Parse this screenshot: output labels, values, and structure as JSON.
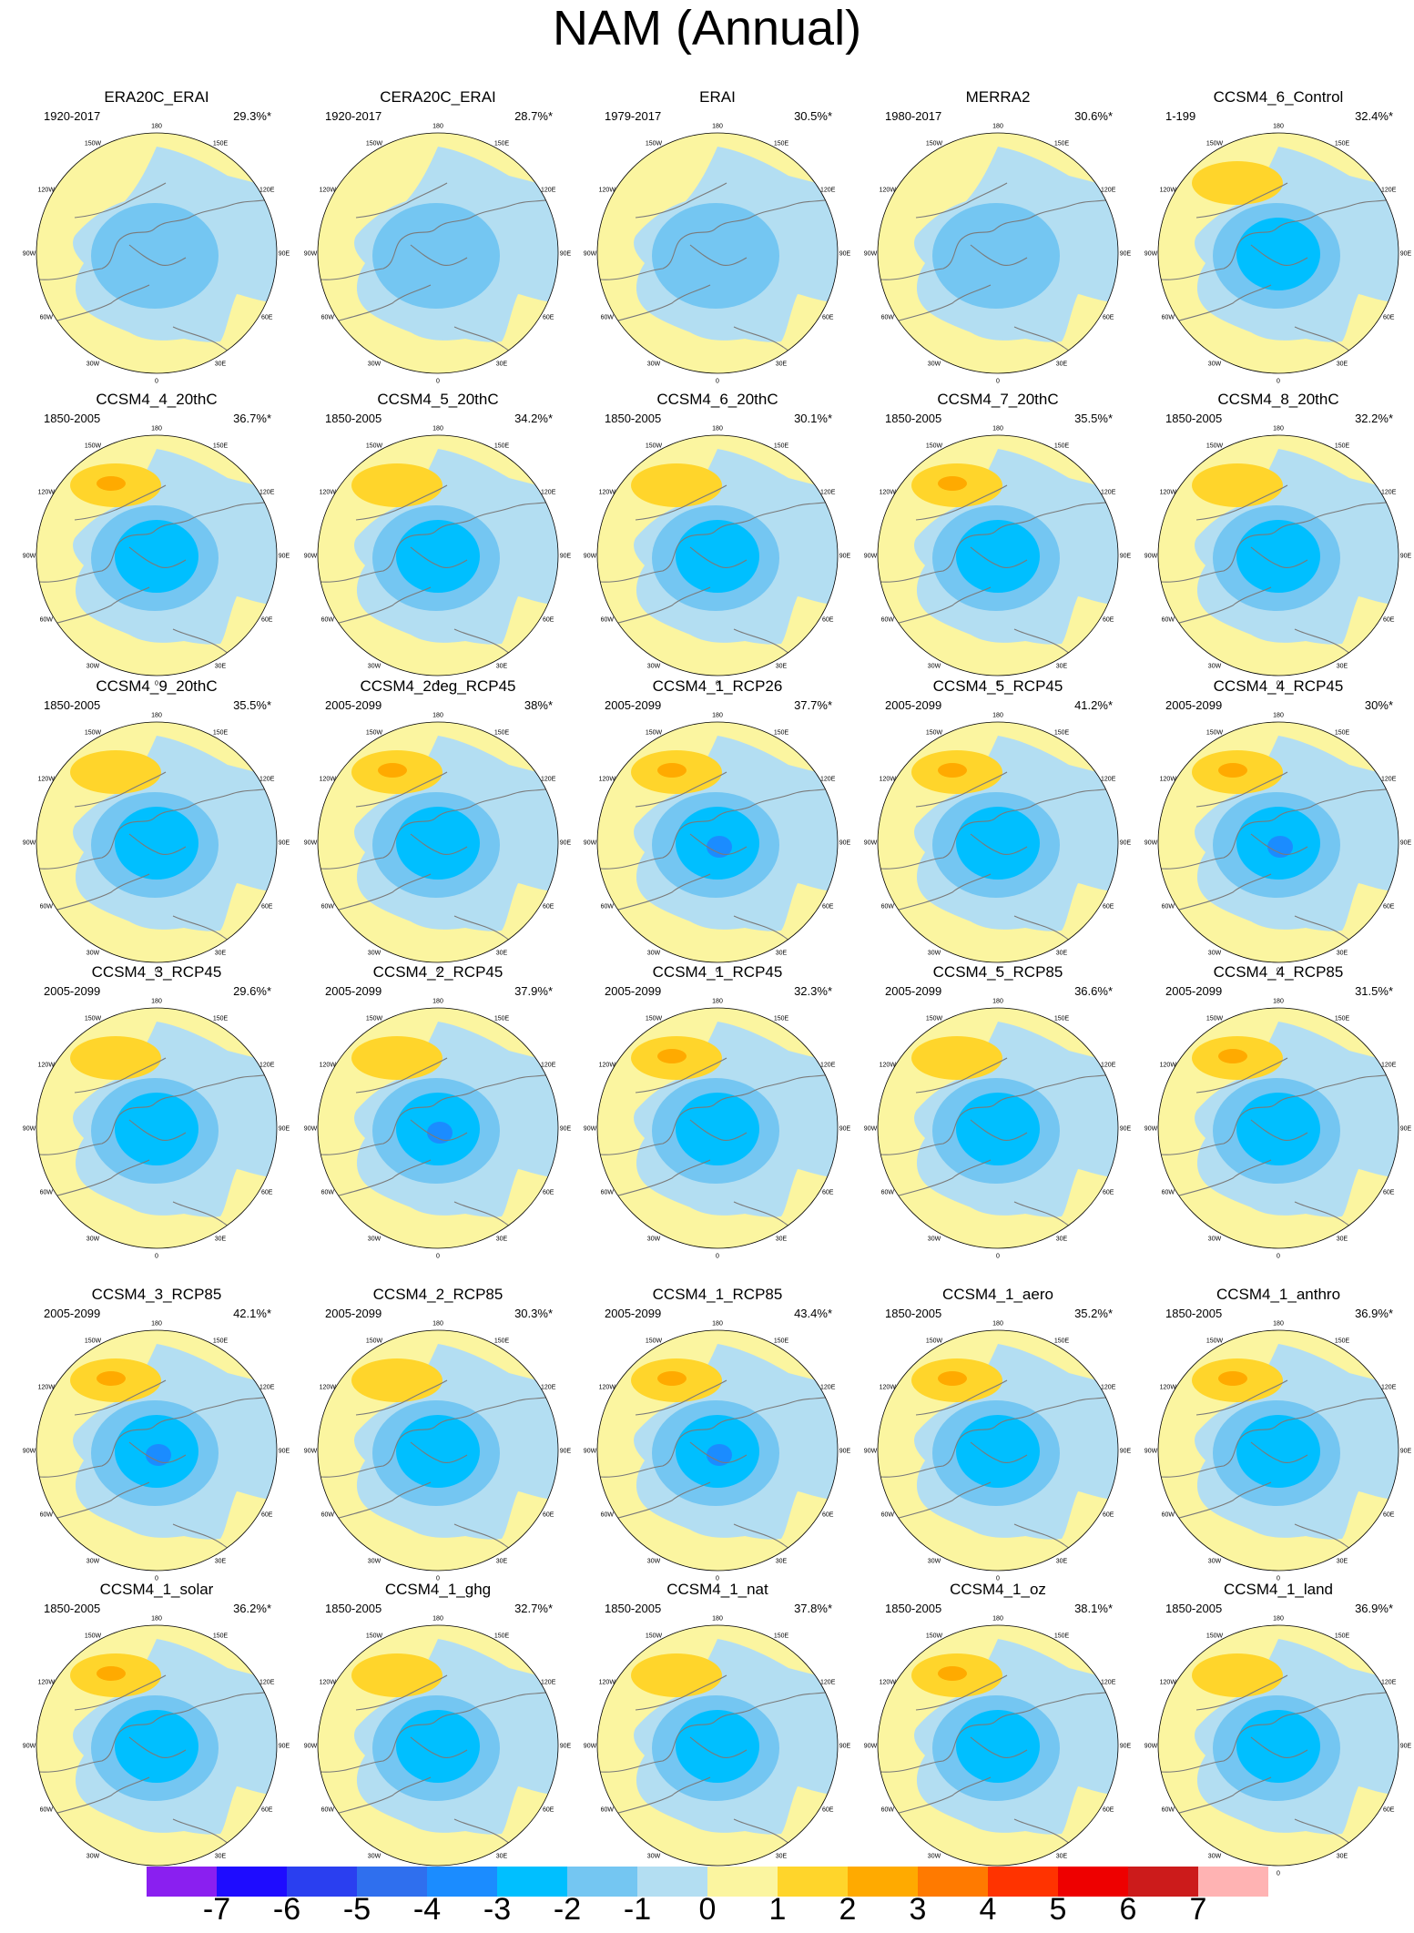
{
  "title": "NAM (Annual)",
  "panels": [
    {
      "title": "ERA20C_ERAI",
      "period": "1920-2017",
      "pct": "29.3%*",
      "pos": 0.2,
      "neg": 1.6
    },
    {
      "title": "CERA20C_ERAI",
      "period": "1920-2017",
      "pct": "28.7%*",
      "pos": 0.2,
      "neg": 1.6
    },
    {
      "title": "ERAI",
      "period": "1979-2017",
      "pct": "30.5%*",
      "pos": 0.2,
      "neg": 1.5
    },
    {
      "title": "MERRA2",
      "period": "1980-2017",
      "pct": "30.6%*",
      "pos": 0.2,
      "neg": 1.5
    },
    {
      "title": "CCSM4_6_Control",
      "period": "1-199",
      "pct": "32.4%*",
      "pos": 1.4,
      "neg": 2.4
    },
    {
      "title": "CCSM4_4_20thC",
      "period": "1850-2005",
      "pct": "36.7%*",
      "pos": 2.3,
      "neg": 2.6
    },
    {
      "title": "CCSM4_5_20thC",
      "period": "1850-2005",
      "pct": "34.2%*",
      "pos": 1.6,
      "neg": 2.5
    },
    {
      "title": "CCSM4_6_20thC",
      "period": "1850-2005",
      "pct": "30.1%*",
      "pos": 1.5,
      "neg": 2.6
    },
    {
      "title": "CCSM4_7_20thC",
      "period": "1850-2005",
      "pct": "35.5%*",
      "pos": 2.2,
      "neg": 2.6
    },
    {
      "title": "CCSM4_8_20thC",
      "period": "1850-2005",
      "pct": "32.2%*",
      "pos": 1.6,
      "neg": 2.4
    },
    {
      "title": "CCSM4_9_20thC",
      "period": "1850-2005",
      "pct": "35.5%*",
      "pos": 1.6,
      "neg": 2.6
    },
    {
      "title": "CCSM4_2deg_RCP45",
      "period": "2005-2099",
      "pct": "38%*",
      "pos": 2.2,
      "neg": 2.6
    },
    {
      "title": "CCSM4_1_RCP26",
      "period": "2005-2099",
      "pct": "37.7%*",
      "pos": 2.3,
      "neg": 3.2
    },
    {
      "title": "CCSM4_5_RCP45",
      "period": "2005-2099",
      "pct": "41.2%*",
      "pos": 2.3,
      "neg": 2.6
    },
    {
      "title": "CCSM4_4_RCP45",
      "period": "2005-2099",
      "pct": "30%*",
      "pos": 2.3,
      "neg": 3.1
    },
    {
      "title": "CCSM4_3_RCP45",
      "period": "2005-2099",
      "pct": "29.6%*",
      "pos": 1.6,
      "neg": 2.2
    },
    {
      "title": "CCSM4_2_RCP45",
      "period": "2005-2099",
      "pct": "37.9%*",
      "pos": 1.6,
      "neg": 3.1
    },
    {
      "title": "CCSM4_1_RCP45",
      "period": "2005-2099",
      "pct": "32.3%*",
      "pos": 2.3,
      "neg": 2.6
    },
    {
      "title": "CCSM4_5_RCP85",
      "period": "2005-2099",
      "pct": "36.6%*",
      "pos": 1.6,
      "neg": 2.6
    },
    {
      "title": "CCSM4_4_RCP85",
      "period": "2005-2099",
      "pct": "31.5%*",
      "pos": 2.3,
      "neg": 2.5
    },
    {
      "title": "CCSM4_3_RCP85",
      "period": "2005-2099",
      "pct": "42.1%*",
      "pos": 2.3,
      "neg": 3.3
    },
    {
      "title": "CCSM4_2_RCP85",
      "period": "2005-2099",
      "pct": "30.3%*",
      "pos": 1.5,
      "neg": 2.4
    },
    {
      "title": "CCSM4_1_RCP85",
      "period": "2005-2099",
      "pct": "43.4%*",
      "pos": 2.4,
      "neg": 3.2
    },
    {
      "title": "CCSM4_1_aero",
      "period": "1850-2005",
      "pct": "35.2%*",
      "pos": 2.3,
      "neg": 2.6
    },
    {
      "title": "CCSM4_1_anthro",
      "period": "1850-2005",
      "pct": "36.9%*",
      "pos": 2.3,
      "neg": 2.6
    },
    {
      "title": "CCSM4_1_solar",
      "period": "1850-2005",
      "pct": "36.2%*",
      "pos": 2.2,
      "neg": 2.6
    },
    {
      "title": "CCSM4_1_ghg",
      "period": "1850-2005",
      "pct": "32.7%*",
      "pos": 1.6,
      "neg": 2.6
    },
    {
      "title": "CCSM4_1_nat",
      "period": "1850-2005",
      "pct": "37.8%*",
      "pos": 1.6,
      "neg": 2.6
    },
    {
      "title": "CCSM4_1_oz",
      "period": "1850-2005",
      "pct": "38.1%*",
      "pos": 2.3,
      "neg": 2.6
    },
    {
      "title": "CCSM4_1_land",
      "period": "1850-2005",
      "pct": "36.9%*",
      "pos": 1.6,
      "neg": 2.6
    }
  ],
  "lon_labels": [
    "180",
    "150E",
    "120E",
    "90E",
    "60E",
    "30E",
    "0",
    "30W",
    "60W",
    "90W",
    "120W",
    "150W"
  ],
  "colorbar": {
    "ticks": [
      "-7",
      "-6",
      "-5",
      "-4",
      "-3",
      "-2",
      "-1",
      "0",
      "1",
      "2",
      "3",
      "4",
      "5",
      "6",
      "7"
    ],
    "colors": [
      "#8a1ff0",
      "#1e0cff",
      "#2a3ff0",
      "#2f6fee",
      "#1b8cff",
      "#00bfff",
      "#74c6f2",
      "#b3def2",
      "#fbf5a0",
      "#ffd52b",
      "#ffaa00",
      "#ff7a00",
      "#ff3300",
      "#ee0000",
      "#cc1b1b",
      "#ffb3b3"
    ]
  }
}
